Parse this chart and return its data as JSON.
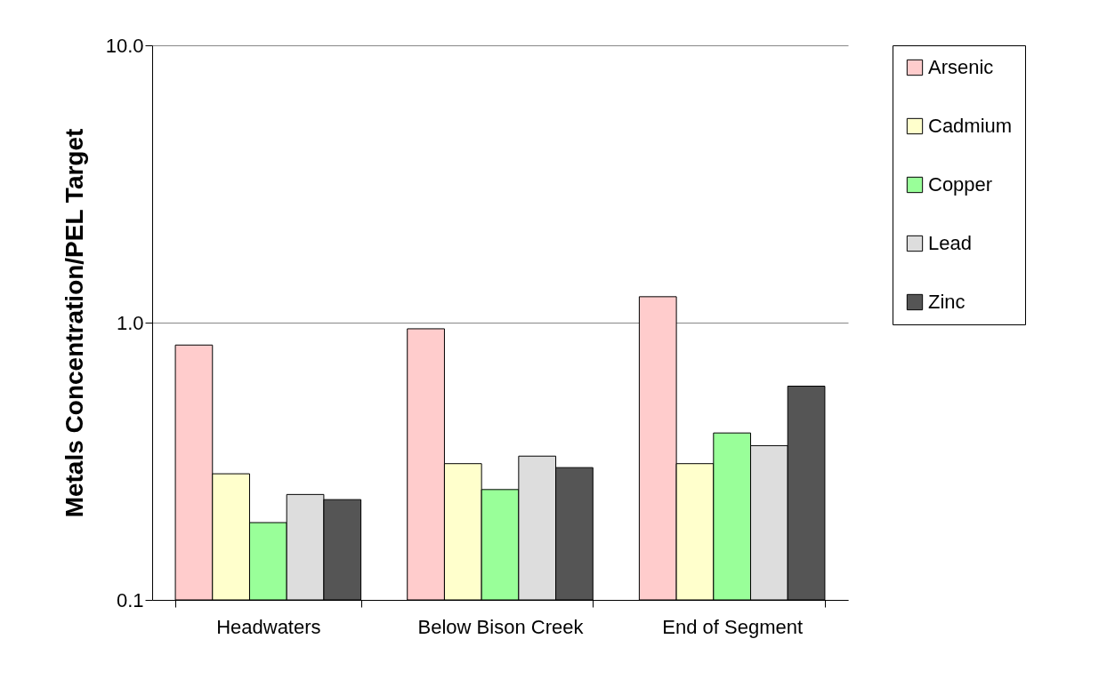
{
  "chart_data": {
    "type": "bar",
    "ylabel": "Metals Concentration/PEL Target",
    "categories": [
      "Headwaters",
      "Below Bison Creek",
      "End of Segment"
    ],
    "series": [
      {
        "name": "Arsenic",
        "color": "#ffcccc",
        "values": [
          0.83,
          0.95,
          1.24
        ]
      },
      {
        "name": "Cadmium",
        "color": "#ffffcc",
        "values": [
          0.285,
          0.31,
          0.31
        ]
      },
      {
        "name": "Copper",
        "color": "#99ff99",
        "values": [
          0.19,
          0.25,
          0.4
        ]
      },
      {
        "name": "Lead",
        "color": "#dddddd",
        "values": [
          0.24,
          0.33,
          0.36
        ]
      },
      {
        "name": "Zinc",
        "color": "#555555",
        "values": [
          0.23,
          0.3,
          0.59
        ]
      }
    ],
    "log": "y",
    "ylim": [
      0.1,
      10
    ],
    "yticks": [
      {
        "value": 0.1,
        "label": "0.1"
      },
      {
        "value": 1,
        "label": "1.0"
      },
      {
        "value": 10,
        "label": "10.0"
      }
    ],
    "grid": "y",
    "legend": "right"
  }
}
